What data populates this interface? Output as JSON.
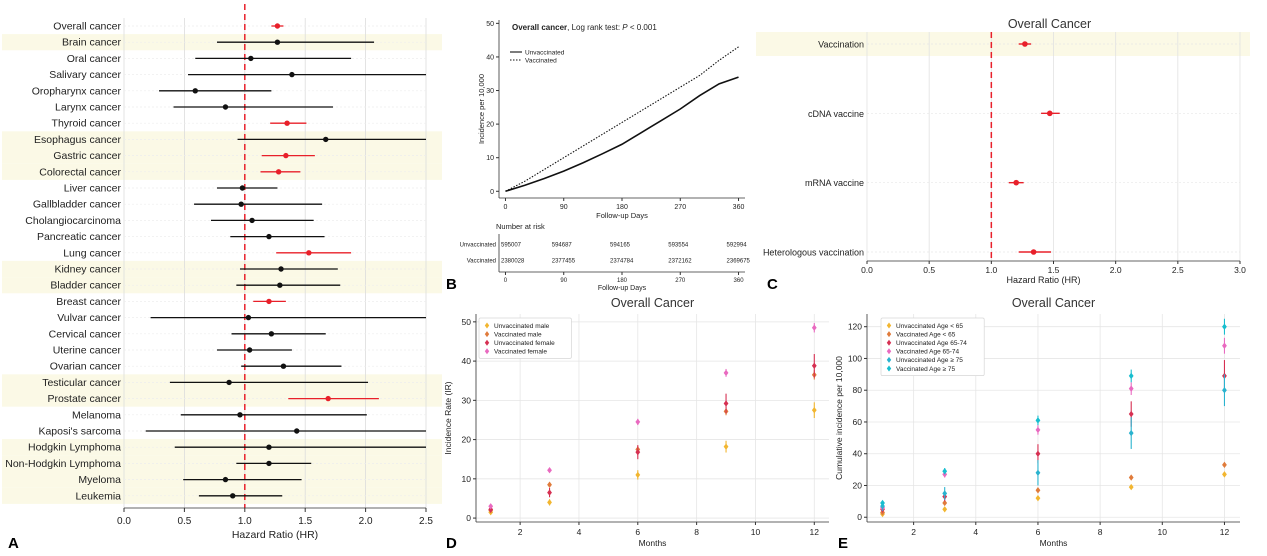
{
  "panel_letters": [
    "A",
    "B",
    "C",
    "D",
    "E"
  ],
  "chart_data": [
    {
      "panel": "A",
      "type": "scatter",
      "subtype": "forest",
      "title": "",
      "xlabel": "Hazard Ratio (HR)",
      "xlim": [
        0,
        2.5
      ],
      "xticks": [
        "0.0",
        "0.5",
        "1.0",
        "1.5",
        "2.0",
        "2.5"
      ],
      "reference_line": 1.0,
      "rows": [
        {
          "label": "Overall cancer",
          "hr": 1.27,
          "lo": 1.22,
          "hi": 1.32,
          "sig": true,
          "band": false
        },
        {
          "label": "Brain cancer",
          "hr": 1.27,
          "lo": 0.77,
          "hi": 2.07,
          "sig": false,
          "band": true
        },
        {
          "label": "Oral cancer",
          "hr": 1.05,
          "lo": 0.59,
          "hi": 1.88,
          "sig": false,
          "band": false
        },
        {
          "label": "Salivary cancer",
          "hr": 1.39,
          "lo": 0.53,
          "hi": 2.5,
          "sig": false,
          "band": false
        },
        {
          "label": "Oropharynx cancer",
          "hr": 0.59,
          "lo": 0.29,
          "hi": 1.22,
          "sig": false,
          "band": false
        },
        {
          "label": "Larynx cancer",
          "hr": 0.84,
          "lo": 0.41,
          "hi": 1.73,
          "sig": false,
          "band": false
        },
        {
          "label": "Thyroid cancer",
          "hr": 1.35,
          "lo": 1.21,
          "hi": 1.51,
          "sig": true,
          "band": false
        },
        {
          "label": "Esophagus cancer",
          "hr": 1.67,
          "lo": 0.94,
          "hi": 2.5,
          "sig": false,
          "band": true
        },
        {
          "label": "Gastric cancer",
          "hr": 1.34,
          "lo": 1.14,
          "hi": 1.58,
          "sig": true,
          "band": true
        },
        {
          "label": "Colorectal cancer",
          "hr": 1.28,
          "lo": 1.13,
          "hi": 1.46,
          "sig": true,
          "band": true
        },
        {
          "label": "Liver cancer",
          "hr": 0.98,
          "lo": 0.77,
          "hi": 1.27,
          "sig": false,
          "band": false
        },
        {
          "label": "Gallbladder cancer",
          "hr": 0.97,
          "lo": 0.58,
          "hi": 1.64,
          "sig": false,
          "band": false
        },
        {
          "label": "Cholangiocarcinoma",
          "hr": 1.06,
          "lo": 0.72,
          "hi": 1.57,
          "sig": false,
          "band": false
        },
        {
          "label": "Pancreatic cancer",
          "hr": 1.2,
          "lo": 0.88,
          "hi": 1.66,
          "sig": false,
          "band": false
        },
        {
          "label": "Lung cancer",
          "hr": 1.53,
          "lo": 1.26,
          "hi": 1.88,
          "sig": true,
          "band": false
        },
        {
          "label": "Kidney cancer",
          "hr": 1.3,
          "lo": 0.96,
          "hi": 1.77,
          "sig": false,
          "band": true
        },
        {
          "label": "Bladder cancer",
          "hr": 1.29,
          "lo": 0.93,
          "hi": 1.79,
          "sig": false,
          "band": true
        },
        {
          "label": "Breast cancer",
          "hr": 1.2,
          "lo": 1.07,
          "hi": 1.34,
          "sig": true,
          "band": false
        },
        {
          "label": "Vulvar cancer",
          "hr": 1.03,
          "lo": 0.22,
          "hi": 2.5,
          "sig": false,
          "band": false
        },
        {
          "label": "Cervical cancer",
          "hr": 1.22,
          "lo": 0.89,
          "hi": 1.67,
          "sig": false,
          "band": false
        },
        {
          "label": "Uterine cancer",
          "hr": 1.04,
          "lo": 0.77,
          "hi": 1.39,
          "sig": false,
          "band": false
        },
        {
          "label": "Ovarian cancer",
          "hr": 1.32,
          "lo": 0.97,
          "hi": 1.8,
          "sig": false,
          "band": false
        },
        {
          "label": "Testicular cancer",
          "hr": 0.87,
          "lo": 0.38,
          "hi": 2.02,
          "sig": false,
          "band": true
        },
        {
          "label": "Prostate cancer",
          "hr": 1.69,
          "lo": 1.36,
          "hi": 2.11,
          "sig": true,
          "band": true
        },
        {
          "label": "Melanoma",
          "hr": 0.96,
          "lo": 0.47,
          "hi": 2.01,
          "sig": false,
          "band": false
        },
        {
          "label": "Kaposi's sarcoma",
          "hr": 1.43,
          "lo": 0.18,
          "hi": 2.5,
          "sig": false,
          "band": false
        },
        {
          "label": "Hodgkin Lymphoma",
          "hr": 1.2,
          "lo": 0.42,
          "hi": 2.5,
          "sig": false,
          "band": true
        },
        {
          "label": "Non-Hodgkin Lymphoma",
          "hr": 1.2,
          "lo": 0.93,
          "hi": 1.55,
          "sig": false,
          "band": true
        },
        {
          "label": "Myeloma",
          "hr": 0.84,
          "lo": 0.49,
          "hi": 1.47,
          "sig": false,
          "band": true
        },
        {
          "label": "Leukemia",
          "hr": 0.9,
          "lo": 0.62,
          "hi": 1.31,
          "sig": false,
          "band": true
        }
      ]
    },
    {
      "panel": "B",
      "type": "line",
      "title_bold": "Overall cancer",
      "title_rest": ", Log rank test: ",
      "title_p": "P",
      "title_value": " < 0.001",
      "xlabel": "Follow-up Days",
      "ylabel": "Incidence per 10,000",
      "xlim": [
        -10,
        370
      ],
      "ylim": [
        -2,
        51
      ],
      "xticks": [
        0,
        90,
        180,
        270,
        360
      ],
      "yticks": [
        0,
        10,
        20,
        30,
        40,
        50
      ],
      "series": [
        {
          "name": "Unvaccinated",
          "style": "solid",
          "x": [
            0,
            30,
            60,
            90,
            120,
            150,
            180,
            210,
            240,
            270,
            300,
            330,
            360
          ],
          "y": [
            0,
            1.8,
            3.8,
            6.0,
            8.5,
            11.2,
            14.0,
            17.5,
            21.0,
            24.5,
            28.5,
            32.0,
            34.0
          ]
        },
        {
          "name": "Vaccinated",
          "style": "dotted",
          "x": [
            0,
            30,
            60,
            90,
            120,
            150,
            180,
            210,
            240,
            270,
            300,
            330,
            360
          ],
          "y": [
            0,
            3.0,
            6.5,
            10.0,
            13.5,
            17.0,
            20.5,
            24.0,
            27.5,
            31.0,
            34.5,
            39.0,
            43.0
          ]
        }
      ],
      "risk_table": {
        "header": "Number at risk",
        "xlabel": "Follow-up Days",
        "rows": [
          {
            "label": "Unvaccinated",
            "values": [
              "595007",
              "594687",
              "594165",
              "593554",
              "592994"
            ]
          },
          {
            "label": "Vaccinated",
            "values": [
              "2380028",
              "2377455",
              "2374784",
              "2372162",
              "2369675"
            ]
          }
        ]
      }
    },
    {
      "panel": "C",
      "type": "scatter",
      "subtype": "forest",
      "title": "Overall Cancer",
      "xlabel": "Hazard Ratio (HR)",
      "xlim": [
        0,
        3.0
      ],
      "xticks": [
        "0.0",
        "0.5",
        "1.0",
        "1.5",
        "2.0",
        "2.5",
        "3.0"
      ],
      "reference_line": 1.0,
      "rows": [
        {
          "label": "Vaccination",
          "hr": 1.27,
          "lo": 1.22,
          "hi": 1.32,
          "band": true
        },
        {
          "label": "cDNA vaccine",
          "hr": 1.47,
          "lo": 1.4,
          "hi": 1.55,
          "band": false
        },
        {
          "label": "mRNA vaccine",
          "hr": 1.2,
          "lo": 1.14,
          "hi": 1.26,
          "band": false
        },
        {
          "label": "Heterologous vaccination",
          "hr": 1.34,
          "lo": 1.22,
          "hi": 1.48,
          "band": false
        }
      ]
    },
    {
      "panel": "D",
      "type": "scatter",
      "title": "Overall Cancer",
      "xlabel": "Months",
      "ylabel": "Incidence Rate (IR)",
      "xlim": [
        0.5,
        12.5
      ],
      "ylim": [
        -1,
        52
      ],
      "xticks": [
        2,
        4,
        6,
        8,
        10,
        12
      ],
      "yticks": [
        0,
        10,
        20,
        30,
        40,
        50
      ],
      "x": [
        1,
        3,
        6,
        9,
        12
      ],
      "series": [
        {
          "name": "Unvaccinated male",
          "color": "#f2b630",
          "values": [
            1.5,
            4.0,
            11.0,
            18.2,
            27.5
          ],
          "err": [
            0.5,
            0.8,
            1.2,
            1.5,
            2.0
          ]
        },
        {
          "name": "Vaccinated male",
          "color": "#e07b3b",
          "values": [
            2.0,
            8.5,
            17.5,
            27.2,
            36.5
          ],
          "err": [
            0.4,
            0.6,
            0.8,
            1.0,
            1.2
          ]
        },
        {
          "name": "Unvaccinated female",
          "color": "#d63052",
          "values": [
            2.2,
            6.5,
            16.8,
            29.2,
            38.8
          ],
          "err": [
            0.8,
            1.2,
            1.8,
            2.5,
            3.0
          ]
        },
        {
          "name": "Vaccinated female",
          "color": "#e96ac0",
          "values": [
            3.0,
            12.2,
            24.5,
            37.0,
            48.5
          ],
          "err": [
            0.3,
            0.5,
            0.8,
            1.0,
            1.2
          ]
        }
      ]
    },
    {
      "panel": "E",
      "type": "scatter",
      "title": "Overall Cancer",
      "xlabel": "Months",
      "ylabel": "Cumulative incidence per 10,000",
      "xlim": [
        0.5,
        12.5
      ],
      "ylim": [
        -3,
        128
      ],
      "xticks": [
        2,
        4,
        6,
        8,
        10,
        12
      ],
      "yticks": [
        0,
        20,
        40,
        60,
        80,
        100,
        120
      ],
      "x": [
        1,
        3,
        6,
        9,
        12
      ],
      "series": [
        {
          "name": "Unvaccinated Age < 65",
          "color": "#f2b630",
          "values": [
            2,
            5,
            12,
            19,
            27
          ],
          "err": [
            0.6,
            0.8,
            1.0,
            1.2,
            1.5
          ]
        },
        {
          "name": "Vaccinated Age < 65",
          "color": "#e07b3b",
          "values": [
            3,
            9,
            17,
            25,
            33
          ],
          "err": [
            0.4,
            0.5,
            0.7,
            0.8,
            1.0
          ]
        },
        {
          "name": "Unvaccinated Age 65-74",
          "color": "#d63052",
          "values": [
            5,
            13,
            40,
            65,
            89
          ],
          "err": [
            2,
            3,
            6,
            8,
            10
          ]
        },
        {
          "name": "Vaccinated Age 65-74",
          "color": "#e96ac0",
          "values": [
            6,
            27,
            55,
            81,
            108
          ],
          "err": [
            1,
            2,
            3,
            4,
            5
          ]
        },
        {
          "name": "Unvaccinated Age ≥ 75",
          "color": "#2ab3cf",
          "values": [
            7,
            15,
            28,
            53,
            80
          ],
          "err": [
            3,
            4,
            8,
            10,
            10
          ]
        },
        {
          "name": "Vaccinated Age ≥ 75",
          "color": "#17becf",
          "values": [
            9,
            29,
            61,
            89,
            120
          ],
          "err": [
            1,
            2,
            3,
            4,
            5
          ]
        }
      ]
    }
  ]
}
